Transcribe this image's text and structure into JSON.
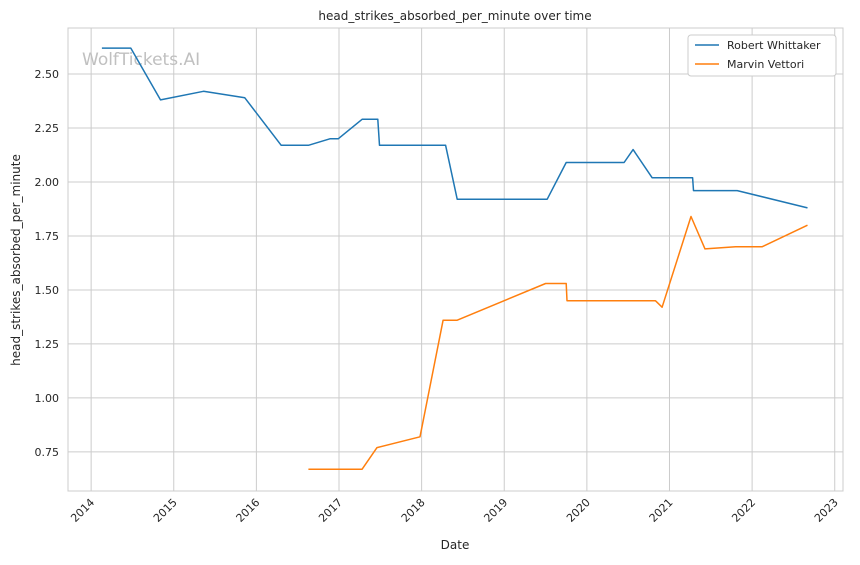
{
  "chart_data": {
    "type": "line",
    "title": "head_strikes_absorbed_per_minute over time",
    "xlabel": "Date",
    "ylabel": "head_strikes_absorbed_per_minute",
    "xlim": [
      2013.72,
      2023.1
    ],
    "ylim": [
      0.569,
      2.713
    ],
    "grid": true,
    "legend_position": "top-right",
    "watermark": "WolfTickets.AI",
    "x_ticks": [
      2014,
      2015,
      2016,
      2017,
      2018,
      2019,
      2020,
      2021,
      2022,
      2023
    ],
    "x_tick_labels": [
      "2014",
      "2015",
      "2016",
      "2017",
      "2018",
      "2019",
      "2020",
      "2021",
      "2022",
      "2023"
    ],
    "y_ticks": [
      0.75,
      1.0,
      1.25,
      1.5,
      1.75,
      2.0,
      2.25,
      2.5
    ],
    "y_tick_labels": [
      "0.75",
      "1.00",
      "1.25",
      "1.50",
      "1.75",
      "2.00",
      "2.25",
      "2.50"
    ],
    "series": [
      {
        "name": "Robert Whittaker",
        "color": "#1f77b4",
        "x": [
          2014.13,
          2014.48,
          2014.84,
          2015.36,
          2015.86,
          2016.3,
          2016.63,
          2016.89,
          2016.99,
          2017.28,
          2017.47,
          2017.49,
          2018.29,
          2018.43,
          2019.52,
          2019.75,
          2020.45,
          2020.56,
          2020.79,
          2021.28,
          2021.29,
          2021.82,
          2022.67
        ],
        "y": [
          2.62,
          2.62,
          2.38,
          2.42,
          2.39,
          2.17,
          2.17,
          2.2,
          2.2,
          2.29,
          2.29,
          2.17,
          2.17,
          1.92,
          1.92,
          2.09,
          2.09,
          2.15,
          2.02,
          2.02,
          1.96,
          1.96,
          1.88
        ]
      },
      {
        "name": "Marvin Vettori",
        "color": "#ff7f0e",
        "x": [
          2016.63,
          2017.28,
          2017.46,
          2017.98,
          2018.26,
          2018.43,
          2019.5,
          2019.75,
          2019.76,
          2020.46,
          2020.83,
          2020.91,
          2021.26,
          2021.43,
          2021.8,
          2022.12,
          2022.67
        ],
        "y": [
          0.67,
          0.67,
          0.77,
          0.82,
          1.36,
          1.36,
          1.53,
          1.53,
          1.45,
          1.45,
          1.45,
          1.42,
          1.84,
          1.69,
          1.7,
          1.7,
          1.8
        ]
      }
    ]
  }
}
